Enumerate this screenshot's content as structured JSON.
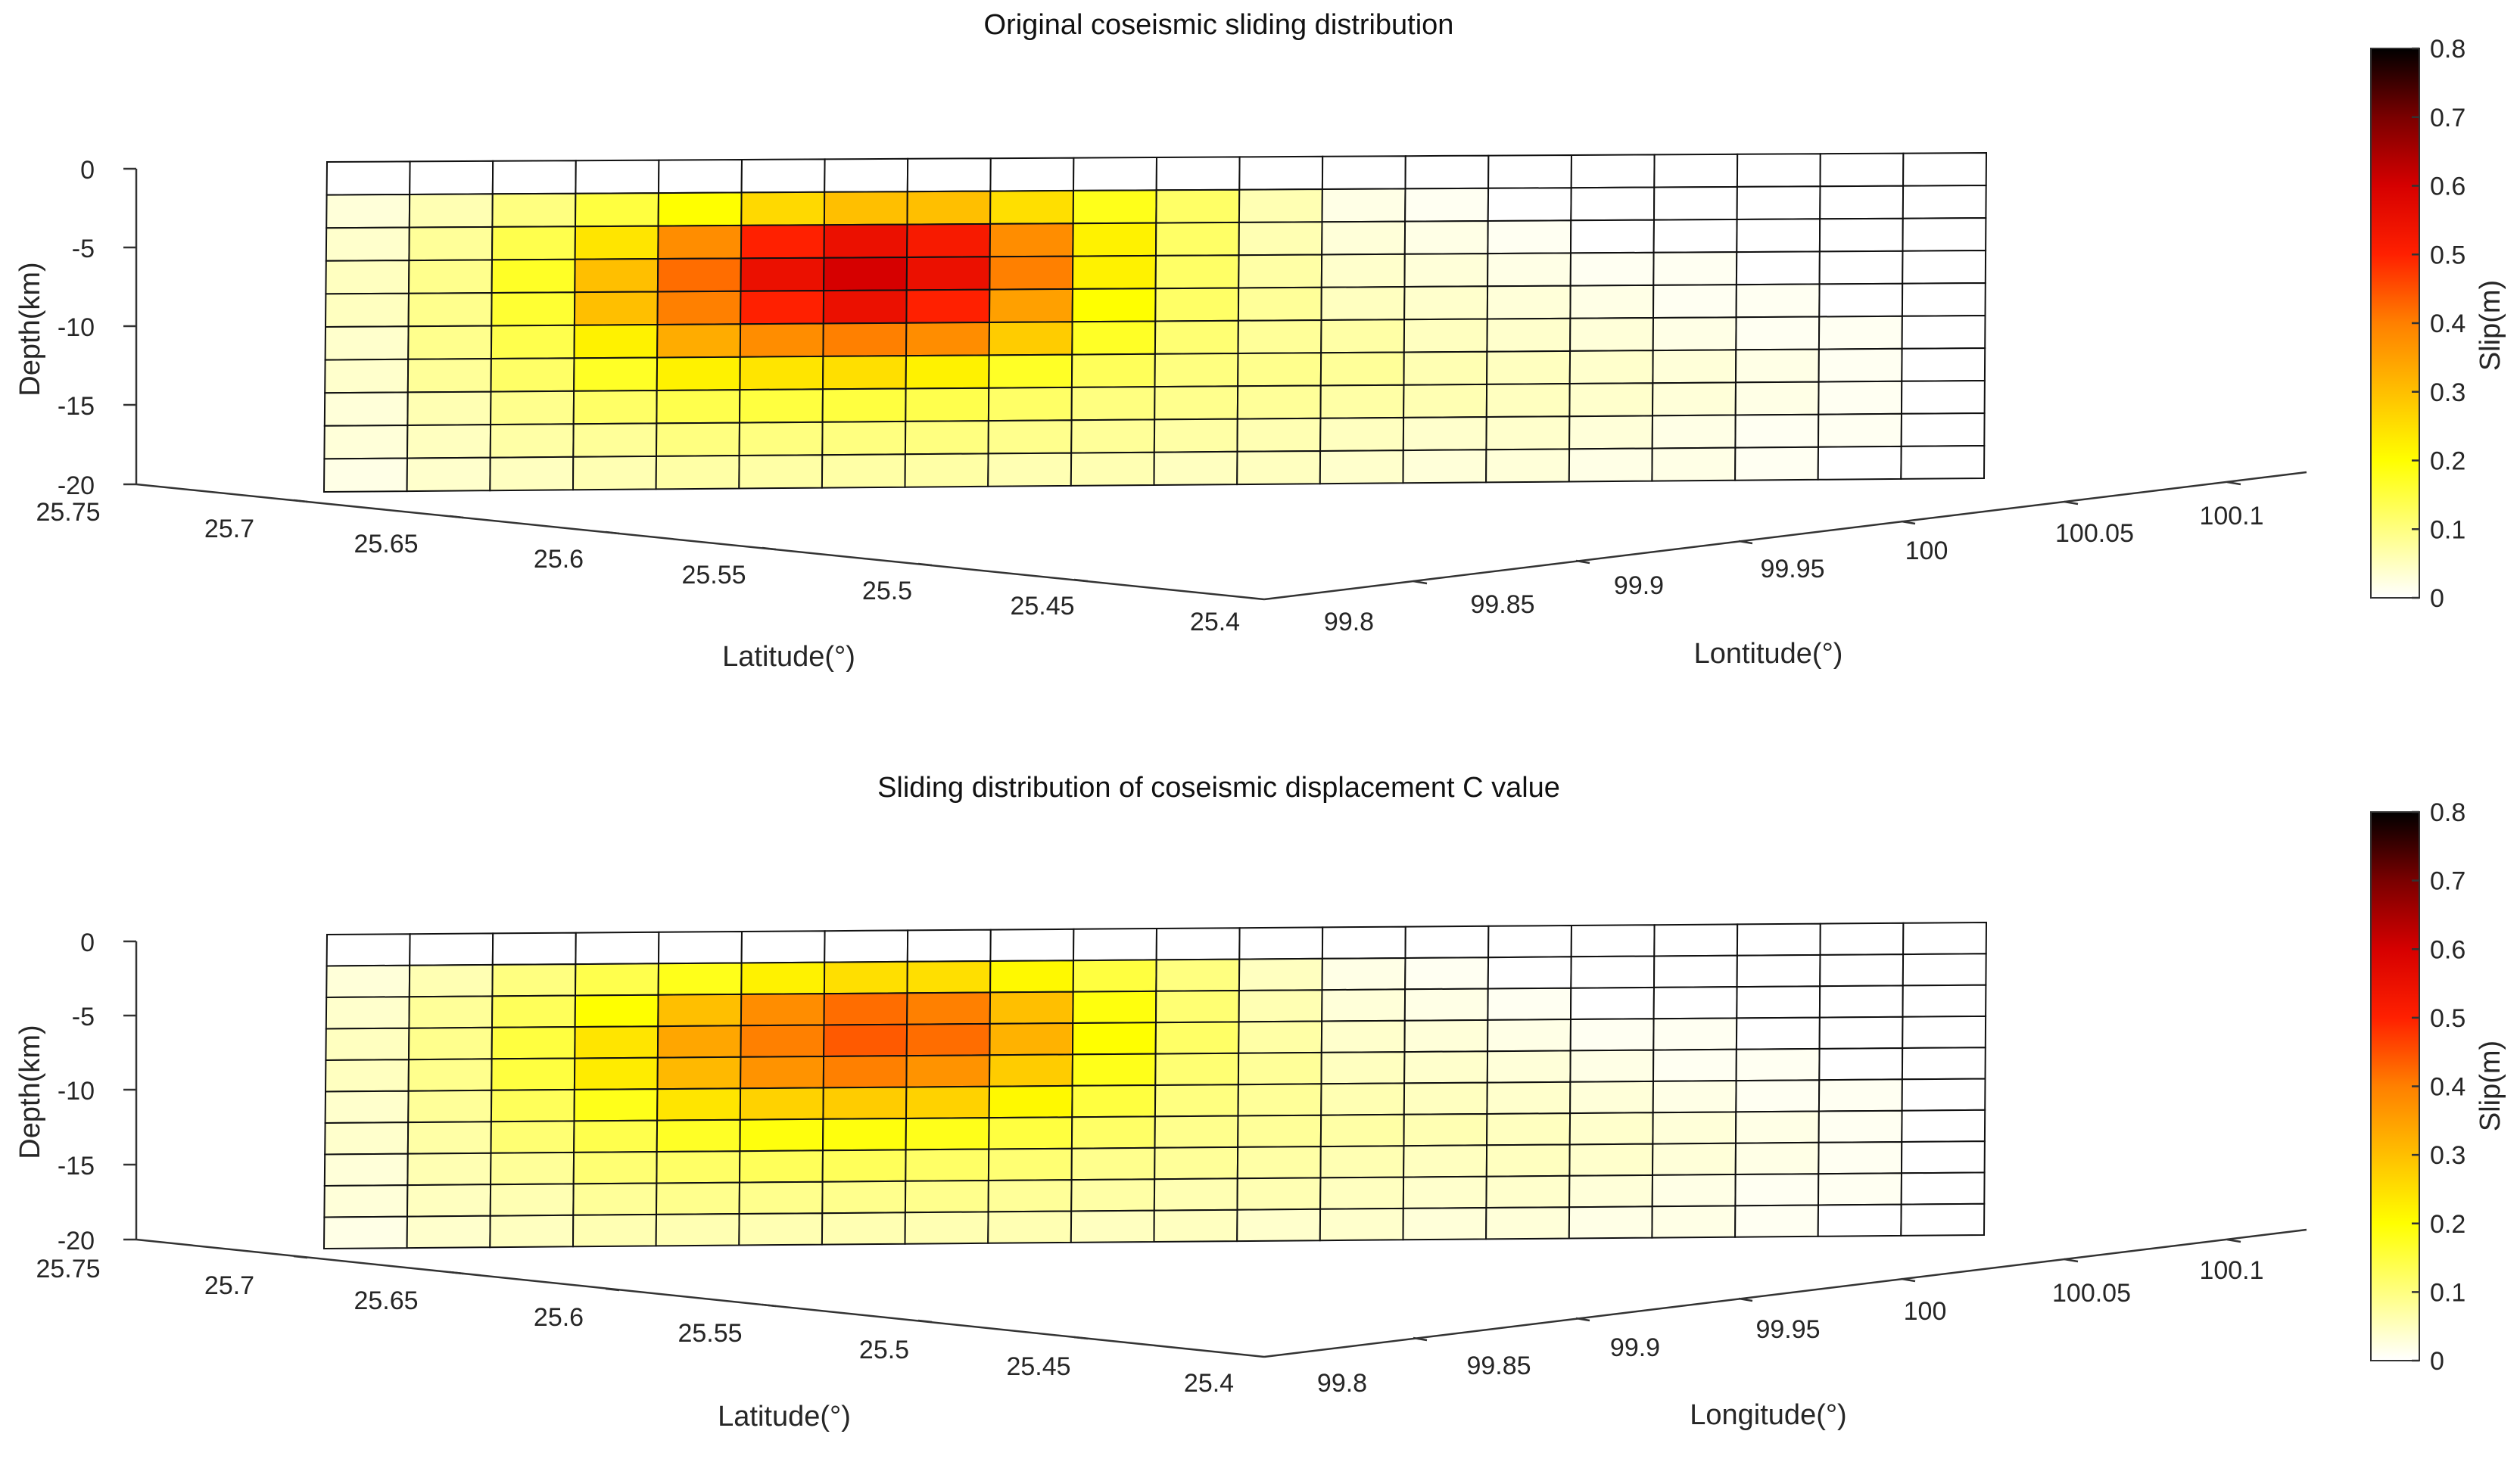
{
  "chart_data": [
    {
      "type": "heatmap",
      "title": "Original coseismic sliding distribution",
      "xlabel": "Latitude(°)",
      "ylabel": "Depth(km)",
      "zlabel": "Lontitude(°)",
      "latitude_ticks": [
        "25.75",
        "25.7",
        "25.65",
        "25.6",
        "25.55",
        "25.5",
        "25.45",
        "25.4"
      ],
      "longitude_ticks": [
        "99.8",
        "99.85",
        "99.9",
        "99.95",
        "100",
        "100.05",
        "100.1"
      ],
      "depth_ticks": [
        "0",
        "-5",
        "-10",
        "-15",
        "-20"
      ],
      "depth_range": [
        -20,
        0
      ],
      "colorbar": {
        "label": "Slip(m)",
        "range": [
          0,
          0.8
        ],
        "ticks": [
          "0",
          "0.1",
          "0.2",
          "0.3",
          "0.4",
          "0.5",
          "0.6",
          "0.7",
          "0.8"
        ],
        "colormap": "hot-reversed"
      },
      "slip_grid": [
        [
          0.0,
          0.0,
          0.0,
          0.0,
          0.0,
          0.0,
          0.0,
          0.0,
          0.0,
          0.0,
          0.0,
          0.0,
          0.0,
          0.0,
          0.0,
          0.0,
          0.0,
          0.0,
          0.0,
          0.0
        ],
        [
          0.03,
          0.06,
          0.1,
          0.15,
          0.2,
          0.26,
          0.3,
          0.3,
          0.25,
          0.18,
          0.12,
          0.06,
          0.02,
          0.01,
          0.0,
          0.0,
          0.0,
          0.0,
          0.0,
          0.0
        ],
        [
          0.04,
          0.08,
          0.14,
          0.24,
          0.38,
          0.5,
          0.55,
          0.52,
          0.38,
          0.22,
          0.12,
          0.06,
          0.03,
          0.02,
          0.01,
          0.0,
          0.0,
          0.0,
          0.0,
          0.0
        ],
        [
          0.05,
          0.09,
          0.17,
          0.3,
          0.42,
          0.55,
          0.6,
          0.55,
          0.4,
          0.22,
          0.12,
          0.07,
          0.04,
          0.03,
          0.02,
          0.01,
          0.01,
          0.0,
          0.0,
          0.0
        ],
        [
          0.05,
          0.09,
          0.16,
          0.3,
          0.4,
          0.5,
          0.55,
          0.5,
          0.35,
          0.2,
          0.12,
          0.08,
          0.05,
          0.04,
          0.03,
          0.02,
          0.01,
          0.01,
          0.0,
          0.0
        ],
        [
          0.04,
          0.09,
          0.14,
          0.22,
          0.33,
          0.38,
          0.4,
          0.38,
          0.28,
          0.17,
          0.11,
          0.08,
          0.07,
          0.05,
          0.04,
          0.03,
          0.02,
          0.01,
          0.01,
          0.0
        ],
        [
          0.04,
          0.08,
          0.12,
          0.17,
          0.22,
          0.24,
          0.25,
          0.22,
          0.17,
          0.13,
          0.1,
          0.09,
          0.08,
          0.06,
          0.05,
          0.04,
          0.03,
          0.02,
          0.01,
          0.0
        ],
        [
          0.03,
          0.06,
          0.09,
          0.12,
          0.14,
          0.15,
          0.15,
          0.14,
          0.12,
          0.1,
          0.09,
          0.08,
          0.07,
          0.06,
          0.05,
          0.04,
          0.03,
          0.02,
          0.01,
          0.0
        ],
        [
          0.03,
          0.05,
          0.07,
          0.08,
          0.1,
          0.1,
          0.1,
          0.1,
          0.09,
          0.08,
          0.07,
          0.06,
          0.05,
          0.04,
          0.04,
          0.03,
          0.02,
          0.01,
          0.01,
          0.0
        ],
        [
          0.02,
          0.04,
          0.05,
          0.06,
          0.07,
          0.07,
          0.07,
          0.07,
          0.06,
          0.06,
          0.05,
          0.05,
          0.04,
          0.03,
          0.03,
          0.02,
          0.02,
          0.01,
          0.0,
          0.0
        ]
      ]
    },
    {
      "type": "heatmap",
      "title": "Sliding distribution of coseismic displacement C value",
      "xlabel": "Latitude(°)",
      "ylabel": "Depth(km)",
      "zlabel": "Longitude(°)",
      "latitude_ticks": [
        "25.75",
        "25.7",
        "25.65",
        "25.6",
        "25.55",
        "25.5",
        "25.45",
        "25.4"
      ],
      "longitude_ticks": [
        "99.8",
        "99.85",
        "99.9",
        "99.95",
        "100",
        "100.05",
        "100.1"
      ],
      "depth_ticks": [
        "0",
        "-5",
        "-10",
        "-15",
        "-20"
      ],
      "depth_range": [
        -20,
        0
      ],
      "colorbar": {
        "label": "Slip(m)",
        "range": [
          0,
          0.8
        ],
        "ticks": [
          "0",
          "0.1",
          "0.2",
          "0.3",
          "0.4",
          "0.5",
          "0.6",
          "0.7",
          "0.8"
        ],
        "colormap": "hot-reversed"
      },
      "slip_grid": [
        [
          0.0,
          0.0,
          0.0,
          0.0,
          0.0,
          0.0,
          0.0,
          0.0,
          0.0,
          0.0,
          0.0,
          0.0,
          0.0,
          0.0,
          0.0,
          0.0,
          0.0,
          0.0,
          0.0,
          0.0
        ],
        [
          0.03,
          0.06,
          0.1,
          0.14,
          0.18,
          0.22,
          0.25,
          0.25,
          0.21,
          0.15,
          0.1,
          0.05,
          0.02,
          0.01,
          0.0,
          0.0,
          0.0,
          0.0,
          0.0,
          0.0
        ],
        [
          0.04,
          0.08,
          0.13,
          0.2,
          0.3,
          0.38,
          0.42,
          0.4,
          0.3,
          0.19,
          0.11,
          0.06,
          0.03,
          0.02,
          0.01,
          0.0,
          0.0,
          0.0,
          0.0,
          0.0
        ],
        [
          0.05,
          0.09,
          0.15,
          0.24,
          0.34,
          0.4,
          0.44,
          0.42,
          0.32,
          0.2,
          0.12,
          0.07,
          0.04,
          0.03,
          0.02,
          0.01,
          0.01,
          0.0,
          0.0,
          0.0
        ],
        [
          0.05,
          0.09,
          0.15,
          0.23,
          0.31,
          0.37,
          0.4,
          0.37,
          0.28,
          0.18,
          0.11,
          0.08,
          0.05,
          0.04,
          0.03,
          0.02,
          0.01,
          0.01,
          0.0,
          0.0
        ],
        [
          0.04,
          0.08,
          0.13,
          0.18,
          0.24,
          0.27,
          0.28,
          0.27,
          0.21,
          0.15,
          0.1,
          0.08,
          0.06,
          0.05,
          0.04,
          0.03,
          0.02,
          0.01,
          0.01,
          0.0
        ],
        [
          0.04,
          0.07,
          0.11,
          0.14,
          0.17,
          0.19,
          0.19,
          0.18,
          0.15,
          0.12,
          0.09,
          0.08,
          0.07,
          0.06,
          0.05,
          0.04,
          0.03,
          0.02,
          0.01,
          0.0
        ],
        [
          0.03,
          0.06,
          0.08,
          0.11,
          0.12,
          0.13,
          0.13,
          0.12,
          0.11,
          0.09,
          0.08,
          0.07,
          0.06,
          0.05,
          0.05,
          0.04,
          0.03,
          0.02,
          0.01,
          0.0
        ],
        [
          0.03,
          0.05,
          0.06,
          0.08,
          0.09,
          0.09,
          0.09,
          0.09,
          0.08,
          0.07,
          0.06,
          0.06,
          0.05,
          0.04,
          0.04,
          0.03,
          0.02,
          0.01,
          0.01,
          0.0
        ],
        [
          0.02,
          0.04,
          0.05,
          0.06,
          0.06,
          0.06,
          0.06,
          0.06,
          0.06,
          0.05,
          0.05,
          0.04,
          0.04,
          0.03,
          0.03,
          0.02,
          0.02,
          0.01,
          0.0,
          0.0
        ]
      ]
    }
  ]
}
